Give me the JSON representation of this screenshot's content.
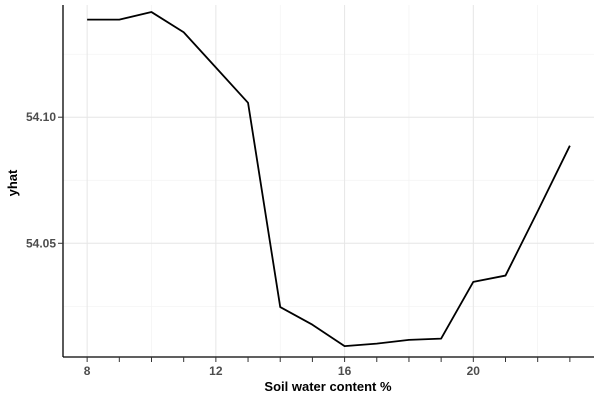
{
  "chart_data": {
    "type": "line",
    "xlabel": "Soil water content %",
    "ylabel": "yhat",
    "x_ticks": [
      8,
      12,
      16,
      20
    ],
    "y_ticks": [
      54.05,
      54.1
    ],
    "y_tick_labels": [
      "54.05",
      "54.10"
    ],
    "xlim": [
      7.25,
      23.75
    ],
    "ylim": [
      54.0049,
      54.1445
    ],
    "grid": true,
    "series": [
      {
        "x": [
          8,
          9,
          10,
          11,
          12,
          13,
          14,
          15,
          16,
          17,
          18,
          19,
          20,
          21,
          22,
          23
        ],
        "values": [
          54.1387,
          54.1387,
          54.1417,
          54.1337,
          54.1197,
          54.1057,
          54.0247,
          54.0177,
          54.0092,
          54.0102,
          54.0117,
          54.0122,
          54.0347,
          54.0372,
          54.0627,
          54.0887
        ]
      }
    ]
  }
}
